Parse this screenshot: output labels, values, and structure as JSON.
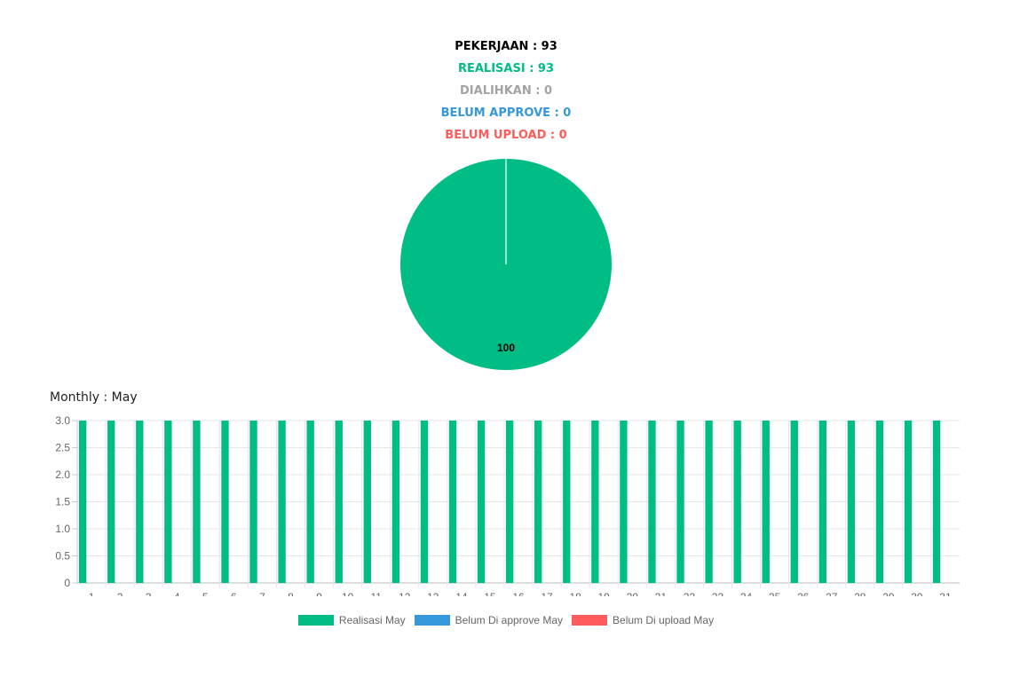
{
  "summary": {
    "pekerjaan": "PEKERJAAN : 93",
    "realisasi": "REALISASI : 93",
    "dialihkan": "DIALIHKAN : 0",
    "belum_approve": "BELUM APPROVE : 0",
    "belum_upload": "BELUM UPLOAD : 0"
  },
  "colors": {
    "realisasi": "#00bd86",
    "dialihkan": "#a3a3a3",
    "belum_approve": "#3498db",
    "belum_upload": "#ff5b5b",
    "pekerjaan": "#000000"
  },
  "monthly_title": "Monthly : May",
  "chart_data": [
    {
      "type": "pie",
      "categories": [
        "Realisasi"
      ],
      "values": [
        100
      ],
      "data_labels": [
        "100"
      ],
      "colors": [
        "#00bd86"
      ]
    },
    {
      "type": "bar",
      "categories": [
        "1",
        "2",
        "3",
        "4",
        "5",
        "6",
        "7",
        "8",
        "9",
        "10",
        "11",
        "12",
        "13",
        "14",
        "15",
        "16",
        "17",
        "18",
        "19",
        "20",
        "21",
        "22",
        "23",
        "24",
        "25",
        "26",
        "27",
        "28",
        "29",
        "30",
        "31"
      ],
      "series": [
        {
          "name": "Realisasi May",
          "color": "#00bd86",
          "values": [
            3,
            3,
            3,
            3,
            3,
            3,
            3,
            3,
            3,
            3,
            3,
            3,
            3,
            3,
            3,
            3,
            3,
            3,
            3,
            3,
            3,
            3,
            3,
            3,
            3,
            3,
            3,
            3,
            3,
            3,
            3
          ]
        },
        {
          "name": "Belum Di approve May",
          "color": "#3498db",
          "values": [
            0,
            0,
            0,
            0,
            0,
            0,
            0,
            0,
            0,
            0,
            0,
            0,
            0,
            0,
            0,
            0,
            0,
            0,
            0,
            0,
            0,
            0,
            0,
            0,
            0,
            0,
            0,
            0,
            0,
            0,
            0
          ]
        },
        {
          "name": "Belum Di upload May",
          "color": "#ff5b5b",
          "values": [
            0,
            0,
            0,
            0,
            0,
            0,
            0,
            0,
            0,
            0,
            0,
            0,
            0,
            0,
            0,
            0,
            0,
            0,
            0,
            0,
            0,
            0,
            0,
            0,
            0,
            0,
            0,
            0,
            0,
            0,
            0
          ]
        }
      ],
      "ylim": [
        0,
        3
      ],
      "yticks": [
        "0",
        "0.5",
        "1.0",
        "1.5",
        "2.0",
        "2.5",
        "3.0"
      ],
      "grid": true,
      "legend": "bottom"
    }
  ]
}
